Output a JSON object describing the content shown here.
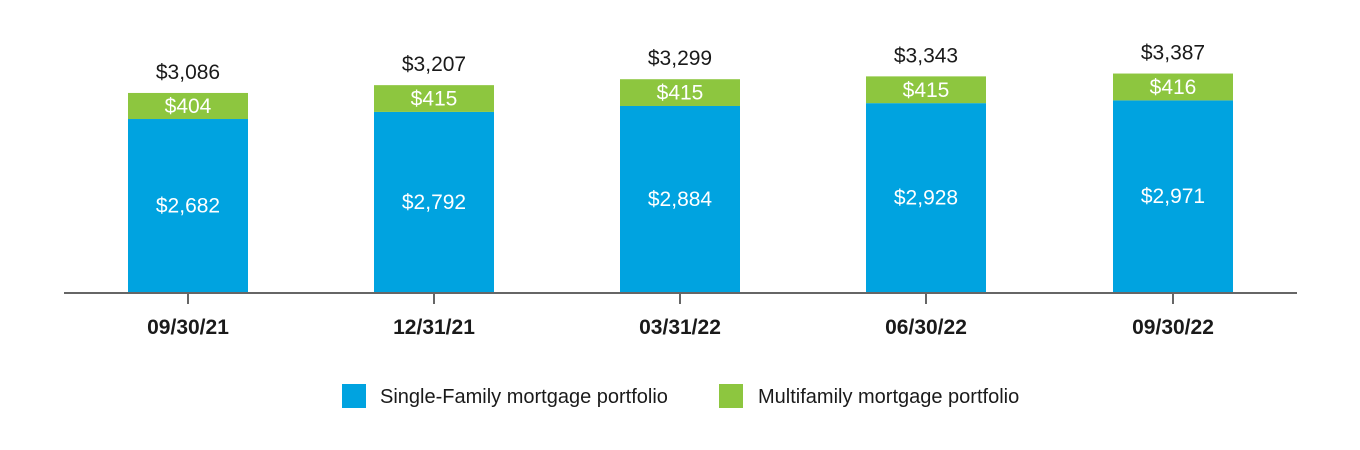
{
  "chart_data": {
    "type": "bar",
    "stacked": true,
    "categories": [
      "09/30/21",
      "12/31/21",
      "03/31/22",
      "06/30/22",
      "09/30/22"
    ],
    "series": [
      {
        "name": "Single-Family mortgage portfolio",
        "color": "#00A3E0",
        "values": [
          2682,
          2792,
          2884,
          2928,
          2971
        ],
        "labels": [
          "$2,682",
          "$2,792",
          "$2,884",
          "$2,928",
          "$2,971"
        ]
      },
      {
        "name": "Multifamily mortgage portfolio",
        "color": "#8DC63F",
        "values": [
          404,
          415,
          415,
          415,
          416
        ],
        "labels": [
          "$404",
          "$415",
          "$415",
          "$415",
          "$416"
        ]
      }
    ],
    "totals": [
      3086,
      3207,
      3299,
      3343,
      3387
    ],
    "total_labels": [
      "$3,086",
      "$3,207",
      "$3,299",
      "$3,343",
      "$3,387"
    ],
    "title": "",
    "xlabel": "",
    "ylabel": "",
    "ylim": [
      0,
      3500
    ],
    "grid": false,
    "legend_position": "bottom-center"
  }
}
